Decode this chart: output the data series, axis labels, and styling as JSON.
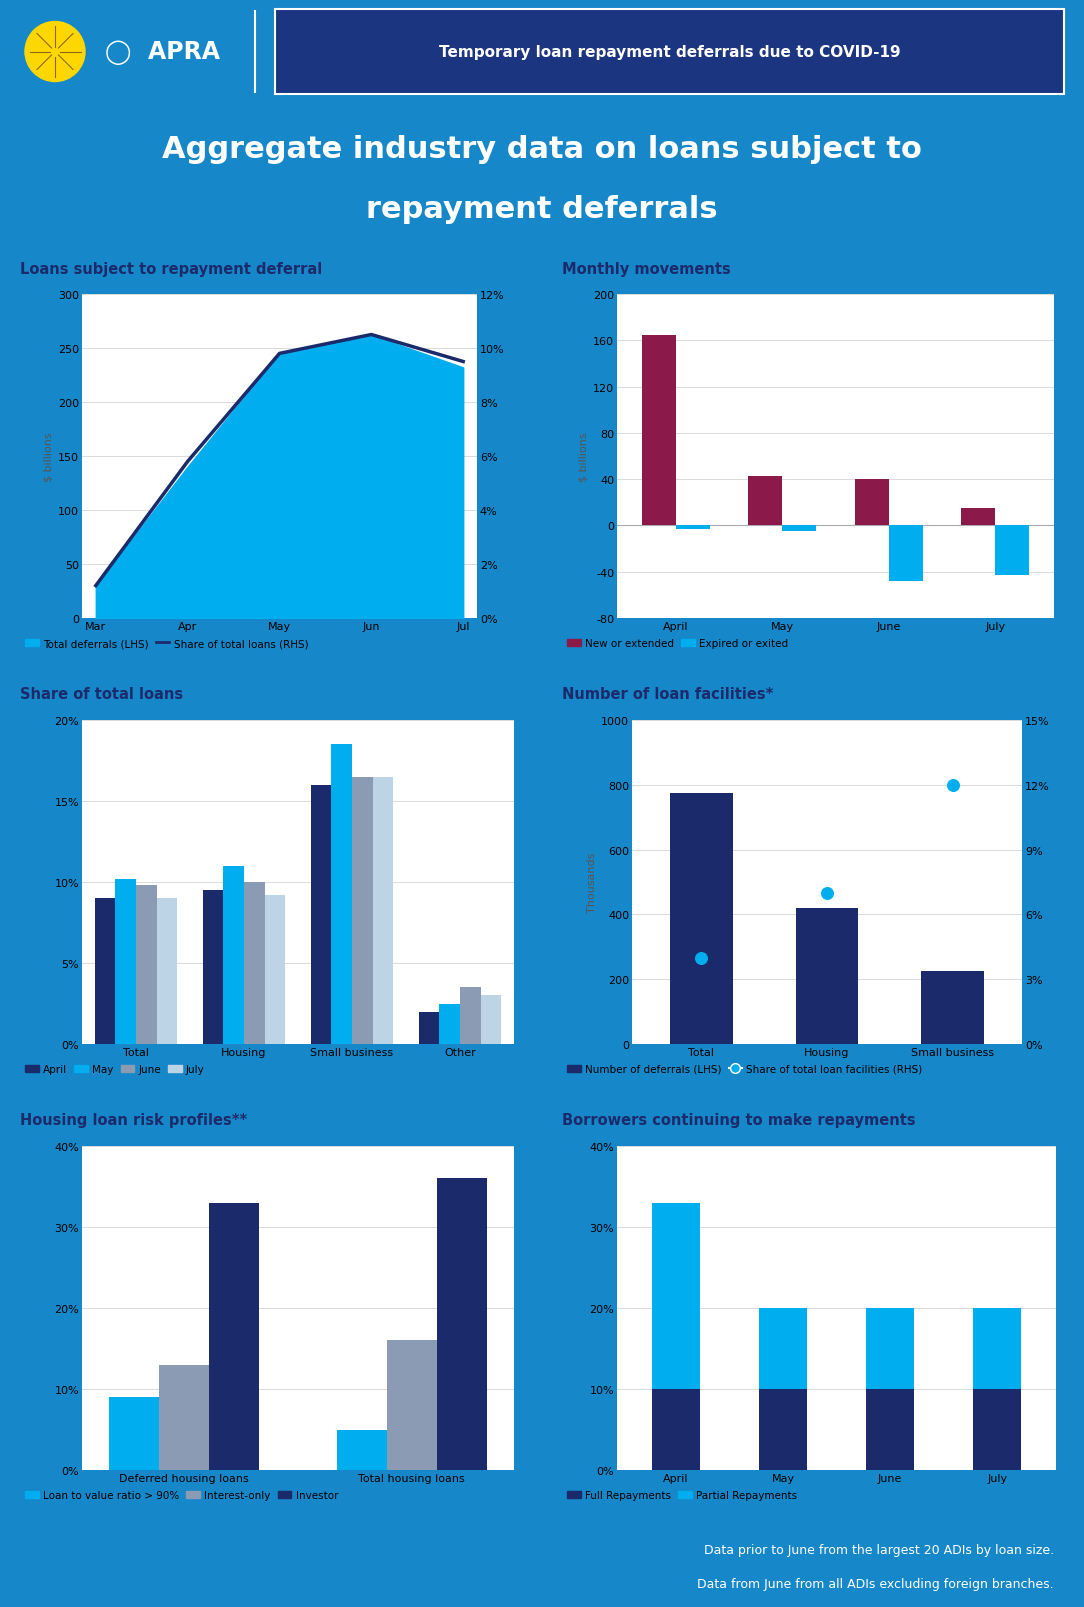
{
  "title_line1": "Aggregate industry data on loans subject to",
  "title_line2": "repayment deferrals",
  "header_text": "Temporary loan repayment deferrals due to COVID-19",
  "chart1_title": "Loans subject to repayment deferral",
  "chart1_months": [
    "Mar",
    "Apr",
    "May",
    "Jun",
    "Jul"
  ],
  "chart1_area_values": [
    30,
    140,
    245,
    262,
    232
  ],
  "chart1_line_values": [
    1.2,
    5.8,
    9.8,
    10.5,
    9.5
  ],
  "chart1_area_color": "#00AEEF",
  "chart1_line_color": "#1B2A6B",
  "chart1_yticks": [
    0,
    50,
    100,
    150,
    200,
    250,
    300
  ],
  "chart1_y2ticks": [
    0,
    2,
    4,
    6,
    8,
    10,
    12
  ],
  "chart1_y2ticklabels": [
    "0%",
    "2%",
    "4%",
    "6%",
    "8%",
    "10%",
    "12%"
  ],
  "chart1_ylabel": "$ billions",
  "chart2_title": "Monthly movements",
  "chart2_months": [
    "April",
    "May",
    "June",
    "July"
  ],
  "chart2_new": [
    165,
    43,
    40,
    15
  ],
  "chart2_expired": [
    -3,
    -5,
    -48,
    -43
  ],
  "chart2_new_color": "#8B1A4A",
  "chart2_expired_color": "#00AEEF",
  "chart2_ylabel": "$ billions",
  "chart2_yticks": [
    -80,
    -40,
    0,
    40,
    80,
    120,
    160,
    200
  ],
  "chart3_title": "Share of total loans",
  "chart3_categories": [
    "Total",
    "Housing",
    "Small business",
    "Other"
  ],
  "chart3_april": [
    9.0,
    9.5,
    16.0,
    2.0
  ],
  "chart3_may": [
    10.2,
    11.0,
    18.5,
    2.5
  ],
  "chart3_june": [
    9.8,
    10.0,
    16.5,
    3.5
  ],
  "chart3_july": [
    9.0,
    9.2,
    16.5,
    3.0
  ],
  "chart3_april_color": "#1B2A6B",
  "chart3_may_color": "#00AEEF",
  "chart3_june_color": "#8B9BB4",
  "chart3_july_color": "#BDD4E7",
  "chart3_yticks": [
    0,
    5,
    10,
    15,
    20
  ],
  "chart3_yticklabels": [
    "0%",
    "5%",
    "10%",
    "15%",
    "20%"
  ],
  "chart4_title": "Number of loan facilities*",
  "chart4_categories": [
    "Total",
    "Housing",
    "Small business"
  ],
  "chart4_bars": [
    775,
    420,
    225
  ],
  "chart4_dots": [
    4.0,
    7.0,
    12.0
  ],
  "chart4_bar_color": "#1B2A6B",
  "chart4_dot_color": "#00AEEF",
  "chart4_ylabel": "Thousands",
  "chart4_yticks": [
    0,
    200,
    400,
    600,
    800,
    1000
  ],
  "chart4_y2ticks": [
    0,
    3,
    6,
    9,
    12,
    15
  ],
  "chart4_y2ticklabels": [
    "0%",
    "3%",
    "6%",
    "9%",
    "12%",
    "15%"
  ],
  "chart5_title": "Housing loan risk profiles**",
  "chart5_categories": [
    "Deferred housing loans",
    "Total housing loans"
  ],
  "chart5_lvr": [
    9.0,
    5.0
  ],
  "chart5_interest_only": [
    13.0,
    16.0
  ],
  "chart5_investor": [
    33.0,
    36.0
  ],
  "chart5_lvr_color": "#00AEEF",
  "chart5_interest_color": "#8B9BB4",
  "chart5_investor_color": "#1B2A6B",
  "chart5_yticks": [
    0,
    10,
    20,
    30,
    40
  ],
  "chart5_yticklabels": [
    "0%",
    "10%",
    "20%",
    "30%",
    "40%"
  ],
  "chart6_title": "Borrowers continuing to make repayments",
  "chart6_months": [
    "April",
    "May",
    "June",
    "July"
  ],
  "chart6_full": [
    10,
    10,
    10,
    10
  ],
  "chart6_partial": [
    23,
    10,
    10,
    10
  ],
  "chart6_full_color": "#1B2A6B",
  "chart6_partial_color": "#00AEEF",
  "chart6_yticks": [
    0,
    10,
    20,
    30,
    40
  ],
  "chart6_yticklabels": [
    "0%",
    "10%",
    "20%",
    "30%",
    "40%"
  ],
  "footer_text1": "Data prior to June from the largest 20 ADIs by loan size.",
  "footer_text2": "Data from June from all ADIs excluding foreign branches.",
  "dark_blue": "#1B2A6B",
  "mid_blue": "#1687C9",
  "light_blue": "#00AEEF",
  "header_dark": "#0D1F5C",
  "grid_color": "#CCCCCC",
  "white": "#FFFFFF"
}
